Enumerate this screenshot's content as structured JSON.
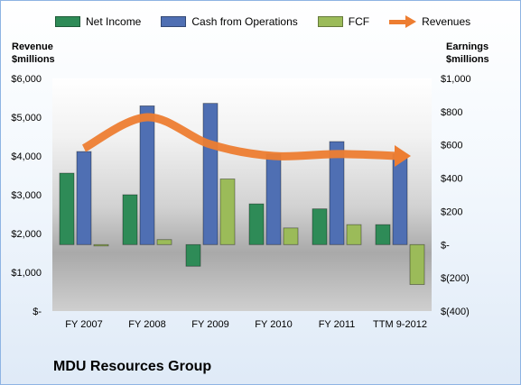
{
  "chart_data": {
    "type": "bar",
    "title": "MDU Resources Group",
    "categories": [
      "FY 2007",
      "FY 2008",
      "FY 2009",
      "FY 2010",
      "FY 2011",
      "TTM 9-2012"
    ],
    "left_axis": {
      "title_line1": "Revenue",
      "title_line2": "$millions",
      "ylim": [
        0,
        6000
      ],
      "ticks": [
        0,
        1000,
        2000,
        3000,
        4000,
        5000,
        6000
      ],
      "tick_labels": [
        "$-",
        "$1,000",
        "$2,000",
        "$3,000",
        "$4,000",
        "$5,000",
        "$6,000"
      ]
    },
    "right_axis": {
      "title_line1": "Earnings",
      "title_line2": "$millions",
      "ylim": [
        -400,
        1000
      ],
      "ticks": [
        -400,
        -200,
        0,
        200,
        400,
        600,
        800,
        1000
      ],
      "tick_labels": [
        "$(400)",
        "$(200)",
        "$-",
        "$200",
        "$400",
        "$600",
        "$800",
        "$1,000"
      ]
    },
    "series": [
      {
        "name": "Net Income",
        "type": "bar",
        "axis": "right",
        "color": "#2e8b57",
        "values": [
          430,
          300,
          -130,
          245,
          215,
          120
        ]
      },
      {
        "name": "Cash from Operations",
        "type": "bar",
        "axis": "right",
        "color": "#4f6fb3",
        "values": [
          560,
          835,
          850,
          545,
          620,
          545
        ]
      },
      {
        "name": "FCF",
        "type": "bar",
        "axis": "right",
        "color": "#9bbb59",
        "values": [
          -5,
          30,
          395,
          100,
          120,
          -240
        ]
      },
      {
        "name": "Revenues",
        "type": "line",
        "axis": "left",
        "color": "#ed7d31",
        "values": [
          4200,
          5000,
          4300,
          4000,
          4050,
          4000
        ]
      }
    ],
    "legend_position": "top",
    "grid": false
  }
}
